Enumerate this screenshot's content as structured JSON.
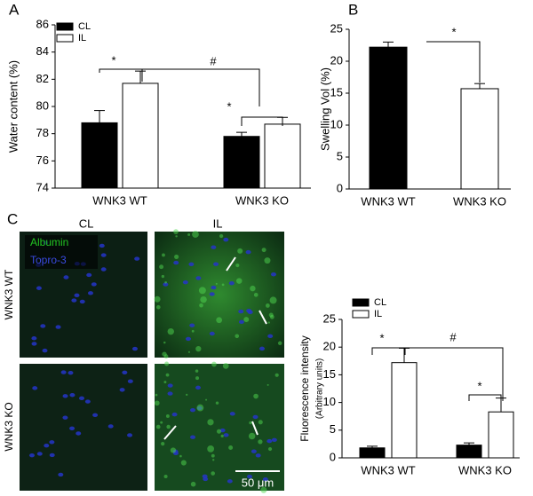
{
  "chart_data": [
    {
      "type": "bar",
      "panel_label": "A",
      "ylabel": "Water content (%)",
      "categories": [
        "WNK3 WT",
        "WNK3 KO"
      ],
      "series": [
        {
          "name": "CL",
          "color": "#000000",
          "values": [
            78.8,
            77.8
          ],
          "errors": [
            0.9,
            0.3
          ]
        },
        {
          "name": "IL",
          "color": "#ffffff",
          "values": [
            81.7,
            78.7
          ],
          "errors": [
            0.9,
            0.5
          ]
        }
      ],
      "ylim": [
        74,
        86
      ],
      "yticks": [
        74,
        76,
        78,
        80,
        82,
        84,
        86
      ],
      "annotations": [
        "*",
        "#",
        "*"
      ]
    },
    {
      "type": "bar",
      "panel_label": "B",
      "ylabel": "Swelling Vol (%)",
      "categories": [
        "WNK3 WT",
        "WNK3 KO"
      ],
      "values": [
        22.2,
        15.7
      ],
      "errors": [
        0.8,
        0.8
      ],
      "colors": [
        "#000000",
        "#ffffff"
      ],
      "ylim": [
        0,
        25
      ],
      "yticks": [
        0,
        5,
        10,
        15,
        20,
        25
      ],
      "annotations": [
        "*"
      ]
    },
    {
      "type": "bar",
      "panel_label": "C",
      "ylabel": "Fluorescence intensity",
      "ylabel_note": "(Arbitrary units)",
      "categories": [
        "WNK3 WT",
        "WNK3 KO"
      ],
      "series": [
        {
          "name": "CL",
          "color": "#000000",
          "values": [
            1.8,
            2.3
          ],
          "errors": [
            0.3,
            0.4
          ]
        },
        {
          "name": "IL",
          "color": "#ffffff",
          "values": [
            17.2,
            8.3
          ],
          "errors": [
            2.6,
            2.5
          ]
        }
      ],
      "ylim": [
        0,
        25
      ],
      "yticks": [
        0,
        5,
        10,
        15,
        20,
        25
      ],
      "annotations": [
        "*",
        "#",
        "*"
      ]
    }
  ],
  "micrographs": {
    "columns": [
      "CL",
      "IL"
    ],
    "rows": [
      "WNK3 WT",
      "WNK3 KO"
    ],
    "stains": [
      {
        "name": "Albumin",
        "color": "#22c422"
      },
      {
        "name": "Topro-3",
        "color": "#3a4ae0"
      }
    ],
    "scale_bar": "50 μm"
  }
}
